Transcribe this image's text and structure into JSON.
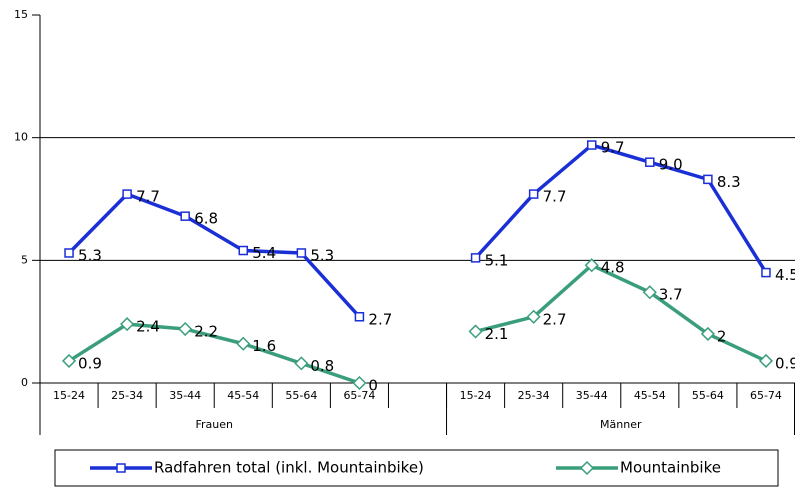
{
  "chart_data": {
    "type": "line",
    "categories": [
      "15-24",
      "25-34",
      "35-44",
      "45-54",
      "55-64",
      "65-74",
      null,
      "15-24",
      "25-34",
      "35-44",
      "45-54",
      "55-64",
      "65-74"
    ],
    "groups": [
      "Frauen",
      "Männer"
    ],
    "series": [
      {
        "name": "Radfahren total (inkl. Mountainbike)",
        "color": "#1a2fd6",
        "marker": "square",
        "values": [
          5.3,
          7.7,
          6.8,
          5.4,
          5.3,
          2.7,
          null,
          5.1,
          7.7,
          9.7,
          9.0,
          8.3,
          4.5
        ],
        "value_labels": [
          "5.3",
          "7.7",
          "6.8",
          "5.4",
          "5.3",
          "2.7",
          null,
          "5.1",
          "7.7",
          "9.7",
          "9.0",
          "8.3",
          "4.5"
        ]
      },
      {
        "name": "Mountainbike",
        "color": "#3a9e7a",
        "marker": "diamond",
        "values": [
          0.9,
          2.4,
          2.2,
          1.6,
          0.8,
          0,
          null,
          2.1,
          2.7,
          4.8,
          3.7,
          2,
          0.9
        ]
      }
    ],
    "ylim": [
      0,
      15
    ],
    "yticks": [
      0,
      5,
      10,
      15
    ],
    "grid": true,
    "legend": "bottom"
  }
}
